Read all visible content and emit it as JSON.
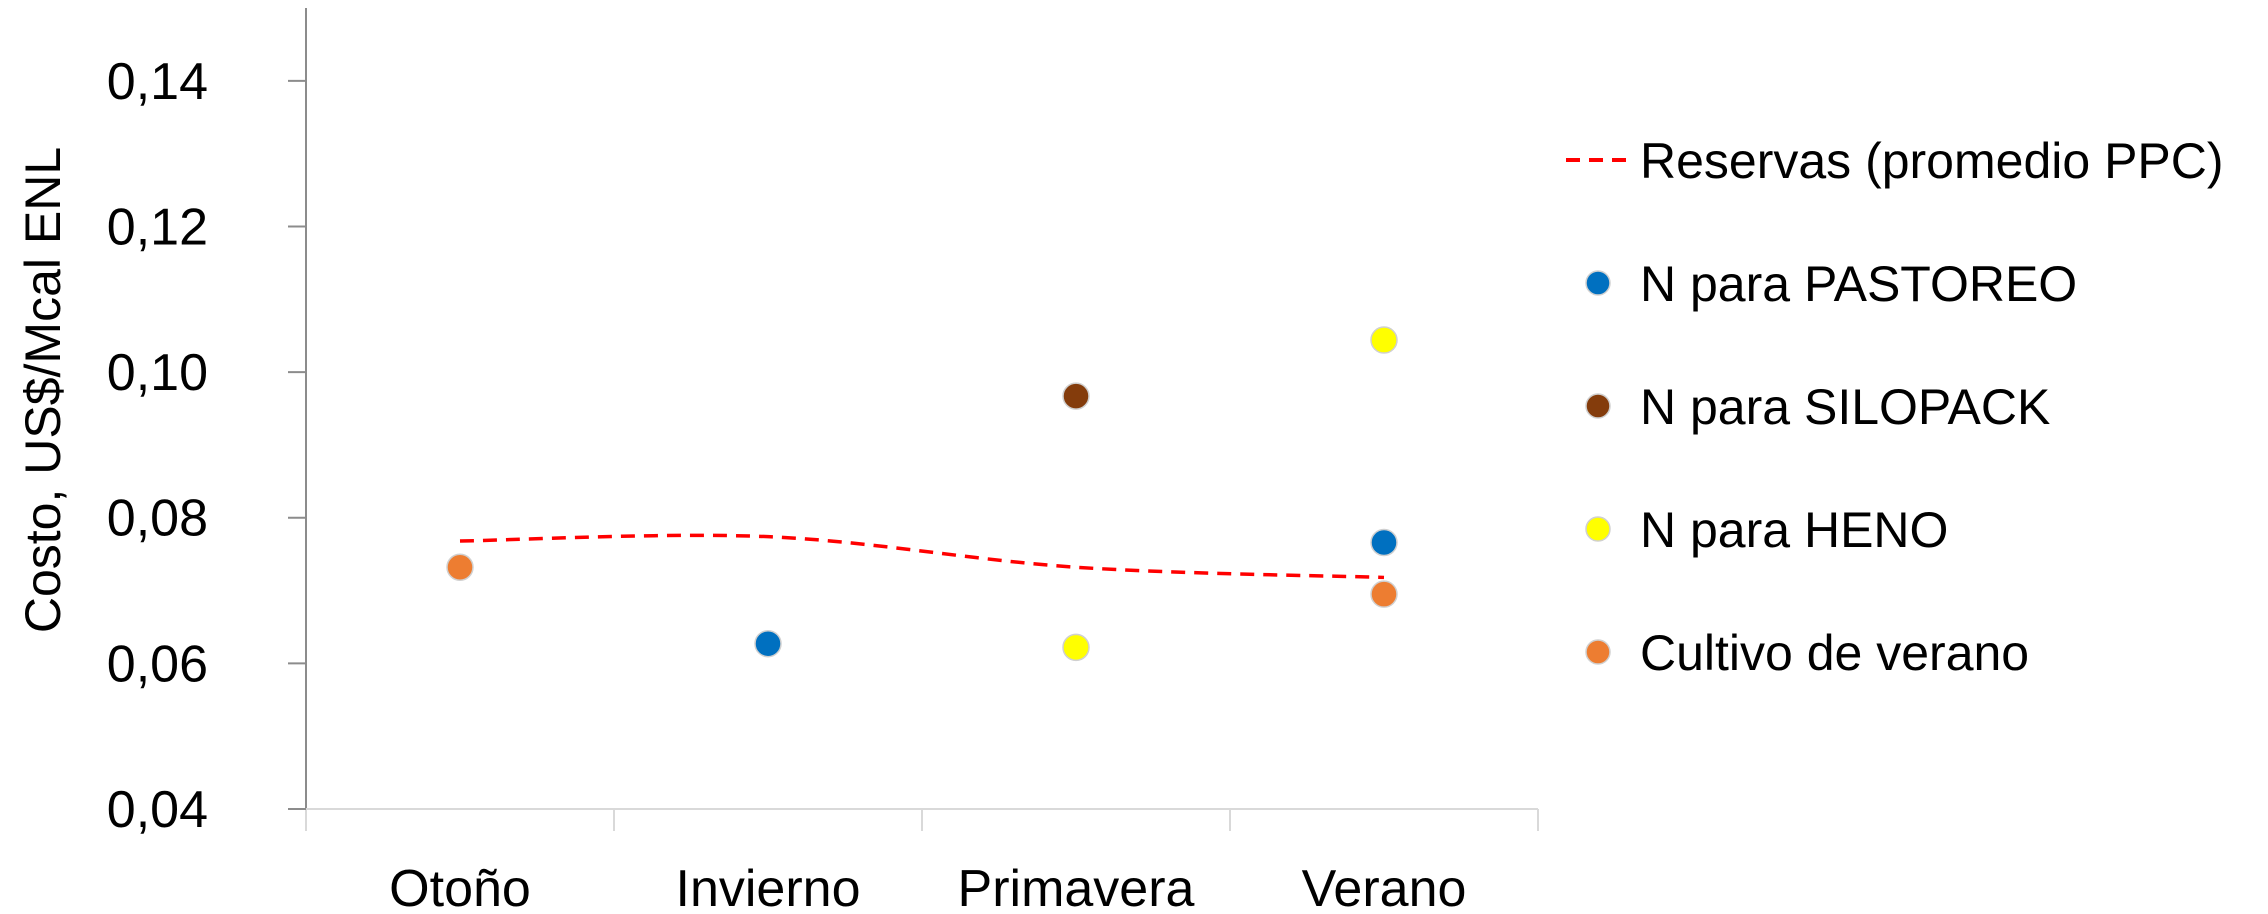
{
  "chart_data": {
    "type": "scatter",
    "categories": [
      "Otoño",
      "Invierno",
      "Primavera",
      "Verano"
    ],
    "ylabel": "Costo, US$/Mcal ENL",
    "ylim": [
      0.04,
      0.15
    ],
    "yticks": [
      0.04,
      0.06,
      0.08,
      0.1,
      0.12,
      0.14
    ],
    "ytick_labels": [
      "0,04",
      "0,06",
      "0,08",
      "0,10",
      "0,12",
      "0,14"
    ],
    "grid": false,
    "legend_position": "right",
    "series": [
      {
        "name": "Reservas (promedio PPC)",
        "kind": "dashed-line",
        "color": "#ff0000",
        "values": [
          0.0768,
          0.0774,
          0.0732,
          0.0718
        ]
      },
      {
        "name": "N para  PASTOREO",
        "kind": "marker",
        "color": "#0070c0",
        "values": [
          null,
          0.0627,
          null,
          0.0766
        ]
      },
      {
        "name": "N para SILOPACK",
        "kind": "marker",
        "color": "#843c0c",
        "values": [
          null,
          null,
          0.0967,
          null
        ]
      },
      {
        "name": "N para HENO",
        "kind": "marker",
        "color": "#ffff00",
        "values": [
          null,
          null,
          0.0622,
          0.1044
        ]
      },
      {
        "name": "Cultivo de verano",
        "kind": "marker",
        "color": "#ed7d31",
        "values": [
          0.0732,
          null,
          null,
          0.0695
        ]
      }
    ]
  }
}
